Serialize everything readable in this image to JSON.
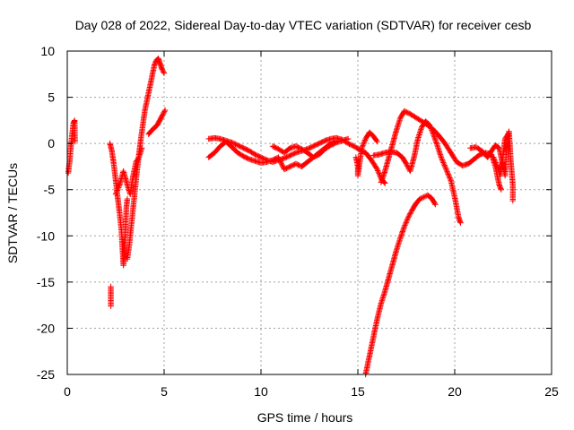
{
  "chart_data": {
    "type": "scatter",
    "title": "Day 028 of 2022, Sidereal Day-to-day VTEC variation (SDTVAR) for receiver cesb",
    "xlabel": "GPS time / hours",
    "ylabel": "SDTVAR / TECUs",
    "xlim": [
      0,
      25
    ],
    "ylim": [
      -25,
      10
    ],
    "x_ticks": [
      0,
      5,
      10,
      15,
      20,
      25
    ],
    "x_tick_labels": [
      "0",
      "5",
      "10",
      "15",
      "20",
      "25"
    ],
    "y_ticks": [
      -25,
      -20,
      -15,
      -10,
      -5,
      0,
      5,
      10
    ],
    "y_tick_labels": [
      "-25",
      "-20",
      "-15",
      "-10",
      "-5",
      "0",
      "5",
      "10"
    ],
    "grid": true,
    "marker": "+",
    "colors": {
      "series": "#ff0000",
      "grid": "#a0a0a0",
      "axis": "#000000"
    },
    "series": [
      {
        "name": "SDTVAR",
        "segments": [
          [
            [
              0.05,
              -3.2
            ],
            [
              0.12,
              -2.0
            ],
            [
              0.18,
              -0.5
            ],
            [
              0.25,
              1.0
            ],
            [
              0.32,
              2.2
            ],
            [
              0.38,
              2.5
            ],
            [
              0.4,
              0.2
            ]
          ],
          [
            [
              2.2,
              0.0
            ],
            [
              2.3,
              -0.8
            ],
            [
              2.4,
              -2.2
            ],
            [
              2.5,
              -4.0
            ],
            [
              2.6,
              -5.8
            ],
            [
              2.7,
              -7.5
            ],
            [
              2.8,
              -9.5
            ],
            [
              2.85,
              -11.5
            ],
            [
              2.9,
              -13.2
            ],
            [
              2.95,
              -12.0
            ],
            [
              3.0,
              -9.5
            ],
            [
              3.05,
              -7.0
            ],
            [
              3.1,
              -6.0
            ]
          ],
          [
            [
              2.25,
              -15.5
            ],
            [
              2.25,
              -17.0
            ],
            [
              2.25,
              -17.6
            ]
          ],
          [
            [
              3.1,
              -12.5
            ],
            [
              3.2,
              -11.0
            ],
            [
              3.3,
              -9.0
            ],
            [
              3.4,
              -7.0
            ],
            [
              3.5,
              -5.0
            ],
            [
              3.6,
              -3.0
            ],
            [
              3.7,
              -1.2
            ],
            [
              3.8,
              0.5
            ],
            [
              3.9,
              2.0
            ],
            [
              4.0,
              3.5
            ],
            [
              4.1,
              4.5
            ],
            [
              4.2,
              5.5
            ],
            [
              4.3,
              6.5
            ],
            [
              4.4,
              7.5
            ],
            [
              4.5,
              8.5
            ],
            [
              4.6,
              9.0
            ],
            [
              4.7,
              9.2
            ],
            [
              4.8,
              8.6
            ],
            [
              4.9,
              8.0
            ],
            [
              5.0,
              7.6
            ]
          ],
          [
            [
              4.2,
              1.0
            ],
            [
              4.35,
              1.4
            ],
            [
              4.5,
              1.7
            ],
            [
              4.65,
              2.0
            ],
            [
              4.8,
              2.6
            ],
            [
              4.95,
              3.2
            ],
            [
              5.05,
              3.6
            ]
          ],
          [
            [
              2.5,
              -5.5
            ],
            [
              2.7,
              -4.5
            ],
            [
              2.9,
              -3.0
            ],
            [
              3.1,
              -4.5
            ],
            [
              3.25,
              -5.5
            ],
            [
              3.4,
              -3.5
            ],
            [
              3.55,
              -2.0
            ],
            [
              3.7,
              -1.5
            ],
            [
              3.85,
              -0.5
            ]
          ],
          [
            [
              7.3,
              0.5
            ],
            [
              7.6,
              0.6
            ],
            [
              7.9,
              0.5
            ],
            [
              8.2,
              0.3
            ],
            [
              8.5,
              0.1
            ],
            [
              8.8,
              -0.2
            ],
            [
              9.1,
              -0.5
            ],
            [
              9.4,
              -0.8
            ],
            [
              9.7,
              -1.2
            ],
            [
              10.0,
              -1.5
            ],
            [
              10.3,
              -1.8
            ],
            [
              10.6,
              -2.0
            ],
            [
              10.9,
              -1.8
            ],
            [
              11.2,
              -1.6
            ],
            [
              11.5,
              -1.3
            ],
            [
              11.8,
              -1.0
            ],
            [
              12.1,
              -0.8
            ],
            [
              12.4,
              -0.6
            ],
            [
              12.7,
              -0.3
            ],
            [
              13.0,
              0.0
            ],
            [
              13.3,
              0.3
            ],
            [
              13.6,
              0.5
            ],
            [
              13.9,
              0.6
            ],
            [
              14.2,
              0.4
            ],
            [
              14.5,
              0.0
            ],
            [
              14.8,
              -0.3
            ],
            [
              15.1,
              -0.7
            ],
            [
              15.4,
              -1.0
            ],
            [
              15.7,
              -1.8
            ],
            [
              16.0,
              -2.8
            ],
            [
              16.2,
              -3.8
            ],
            [
              16.4,
              -4.3
            ]
          ],
          [
            [
              7.3,
              -1.5
            ],
            [
              7.6,
              -1.0
            ],
            [
              7.9,
              -0.3
            ],
            [
              8.2,
              0.2
            ],
            [
              8.5,
              -0.4
            ],
            [
              8.8,
              -1.0
            ],
            [
              9.1,
              -1.4
            ],
            [
              9.4,
              -1.7
            ],
            [
              9.7,
              -1.9
            ],
            [
              10.0,
              -2.1
            ],
            [
              10.3,
              -2.0
            ],
            [
              10.6,
              -1.8
            ],
            [
              10.9,
              -1.5
            ],
            [
              11.2,
              -2.8
            ],
            [
              11.5,
              -2.5
            ],
            [
              11.8,
              -2.2
            ],
            [
              12.1,
              -2.5
            ],
            [
              12.4,
              -2.0
            ],
            [
              12.7,
              -1.5
            ],
            [
              13.0,
              -1.2
            ],
            [
              13.3,
              -0.6
            ],
            [
              13.6,
              -0.2
            ],
            [
              13.9,
              0.1
            ],
            [
              14.2,
              0.3
            ],
            [
              14.5,
              0.5
            ]
          ],
          [
            [
              10.6,
              -0.3
            ],
            [
              10.9,
              -0.6
            ],
            [
              11.2,
              -1.0
            ],
            [
              11.5,
              -0.5
            ],
            [
              11.8,
              -0.3
            ],
            [
              12.1,
              -0.6
            ],
            [
              12.4,
              -1.0
            ],
            [
              12.7,
              -1.5
            ],
            [
              13.0,
              -1.0
            ],
            [
              13.3,
              -0.5
            ],
            [
              13.6,
              0.0
            ],
            [
              13.9,
              0.3
            ]
          ],
          [
            [
              14.9,
              -1.5
            ],
            [
              15.0,
              -2.5
            ],
            [
              15.0,
              -3.5
            ],
            [
              15.1,
              -2.0
            ],
            [
              15.2,
              -0.5
            ],
            [
              15.4,
              0.5
            ],
            [
              15.6,
              1.2
            ],
            [
              15.8,
              0.8
            ],
            [
              16.0,
              0.2
            ]
          ],
          [
            [
              15.8,
              -1.3
            ],
            [
              16.1,
              -1.2
            ],
            [
              16.4,
              -1.0
            ],
            [
              16.7,
              -0.9
            ],
            [
              17.0,
              -1.0
            ],
            [
              17.3,
              -1.5
            ],
            [
              17.5,
              -2.2
            ],
            [
              17.7,
              -3.0
            ],
            [
              17.9,
              -1.5
            ],
            [
              18.1,
              0.5
            ],
            [
              18.3,
              1.8
            ],
            [
              18.5,
              2.4
            ],
            [
              18.7,
              2.0
            ],
            [
              18.9,
              1.0
            ],
            [
              19.1,
              -0.2
            ],
            [
              19.3,
              -1.5
            ],
            [
              19.5,
              -2.5
            ],
            [
              19.8,
              -4.0
            ],
            [
              20.0,
              -5.8
            ],
            [
              20.2,
              -8.0
            ],
            [
              20.3,
              -8.6
            ]
          ],
          [
            [
              16.2,
              -4.2
            ],
            [
              16.4,
              -3.0
            ],
            [
              16.6,
              -1.5
            ],
            [
              16.8,
              0.0
            ],
            [
              17.0,
              1.5
            ],
            [
              17.2,
              2.8
            ],
            [
              17.4,
              3.5
            ],
            [
              17.7,
              3.2
            ],
            [
              18.0,
              2.8
            ],
            [
              18.3,
              2.4
            ],
            [
              18.6,
              2.0
            ],
            [
              18.9,
              1.5
            ],
            [
              19.2,
              0.8
            ],
            [
              19.5,
              0.0
            ],
            [
              19.8,
              -1.0
            ],
            [
              20.1,
              -2.0
            ],
            [
              20.4,
              -2.4
            ],
            [
              20.7,
              -2.2
            ],
            [
              21.0,
              -1.7
            ],
            [
              21.3,
              -1.2
            ],
            [
              21.6,
              -1.0
            ],
            [
              21.9,
              -1.2
            ],
            [
              22.1,
              -2.5
            ],
            [
              22.3,
              -4.5
            ],
            [
              22.4,
              -5.0
            ]
          ],
          [
            [
              15.4,
              -25.0
            ],
            [
              15.6,
              -23.0
            ],
            [
              15.8,
              -21.0
            ],
            [
              16.0,
              -19.0
            ],
            [
              16.2,
              -17.3
            ],
            [
              16.4,
              -16.0
            ],
            [
              16.6,
              -14.5
            ],
            [
              16.8,
              -13.0
            ],
            [
              17.0,
              -11.5
            ],
            [
              17.2,
              -10.2
            ],
            [
              17.4,
              -9.0
            ],
            [
              17.6,
              -8.0
            ],
            [
              17.8,
              -7.2
            ],
            [
              18.0,
              -6.5
            ],
            [
              18.2,
              -6.0
            ],
            [
              18.4,
              -5.8
            ],
            [
              18.6,
              -5.6
            ],
            [
              18.8,
              -5.9
            ],
            [
              19.0,
              -6.6
            ]
          ],
          [
            [
              20.8,
              -0.5
            ],
            [
              21.1,
              -0.4
            ],
            [
              21.4,
              -0.8
            ],
            [
              21.7,
              -1.5
            ],
            [
              21.9,
              -0.8
            ],
            [
              22.1,
              -0.2
            ],
            [
              22.3,
              -0.5
            ],
            [
              22.5,
              -2.5
            ],
            [
              22.6,
              -3.5
            ],
            [
              22.7,
              0.5
            ],
            [
              22.8,
              1.3
            ],
            [
              22.9,
              -2.0
            ],
            [
              23.0,
              -4.5
            ],
            [
              23.0,
              -6.2
            ]
          ],
          [
            [
              22.0,
              -1.5
            ],
            [
              22.2,
              -2.5
            ],
            [
              22.35,
              -3.5
            ],
            [
              22.5,
              -1.2
            ],
            [
              22.6,
              0.5
            ],
            [
              22.75,
              1.0
            ],
            [
              22.85,
              -0.5
            ]
          ]
        ]
      }
    ]
  }
}
